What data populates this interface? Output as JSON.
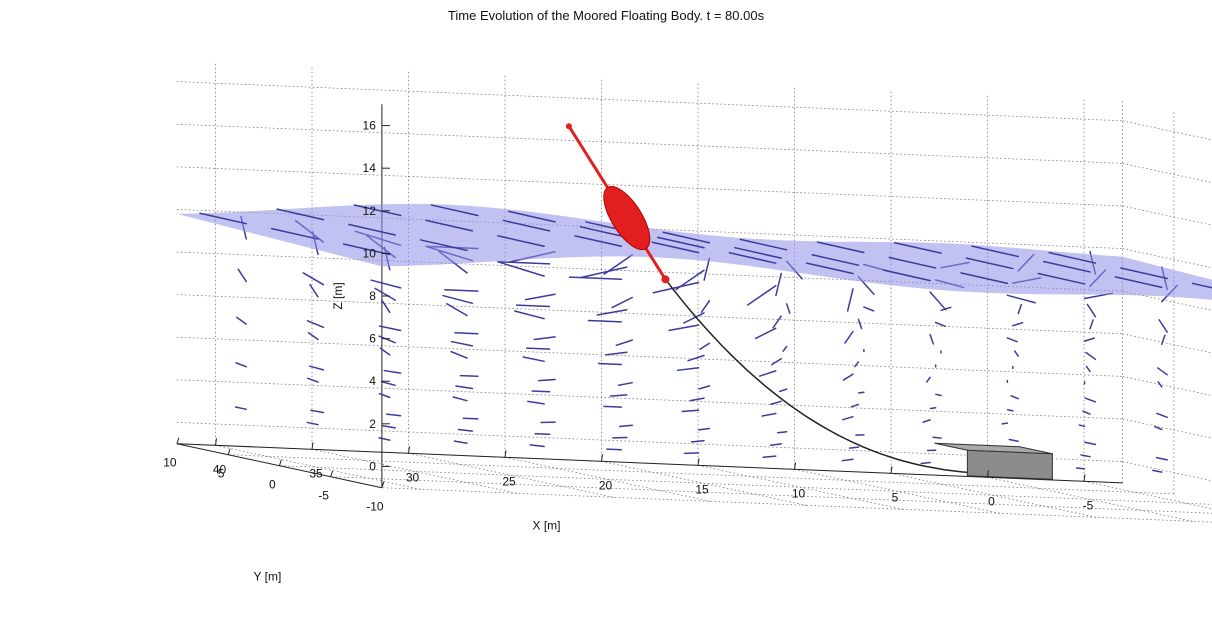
{
  "chart_data": {
    "type": "3d-quiver",
    "title": "Time Evolution of the Moored Floating Body. t = 80.00s",
    "xlabel": "X [m]",
    "ylabel": "Y [m]",
    "zlabel": "Z [m]",
    "x_ticks": [
      40,
      35,
      30,
      25,
      20,
      15,
      10,
      5,
      0,
      -5
    ],
    "y_ticks": [
      -10,
      -5,
      0,
      5,
      10
    ],
    "z_ticks": [
      0,
      2,
      4,
      6,
      8,
      10,
      12,
      14,
      16
    ],
    "xlim": [
      -7,
      42
    ],
    "ylim": [
      -10,
      10
    ],
    "zlim": [
      -1,
      17
    ],
    "grid": true,
    "time_s": 80.0,
    "free_surface": {
      "mean_level_z": 10,
      "wave_crest_x": 28,
      "color": "#8f8fe8"
    },
    "velocity_field": {
      "color": "#3b3b9e",
      "x_stations": [
        40,
        36,
        32,
        28,
        24,
        20,
        16,
        12,
        8,
        4,
        0,
        -4
      ],
      "z_levels": [
        1,
        3,
        5,
        7,
        9
      ]
    },
    "mooring_line": {
      "anchor": {
        "x": 5,
        "y": 0,
        "z": 0
      },
      "fairlead": {
        "x": 22,
        "y": 0,
        "z": 8.5
      },
      "color": "#222222"
    },
    "buoy": {
      "center": {
        "x": 24,
        "y": 0,
        "z": 11.3
      },
      "mast_top": {
        "x": 27,
        "y": 0,
        "z": 15.5
      },
      "color": "#e11f1f"
    },
    "anchor_block": {
      "color": "#8c8c8c"
    }
  }
}
